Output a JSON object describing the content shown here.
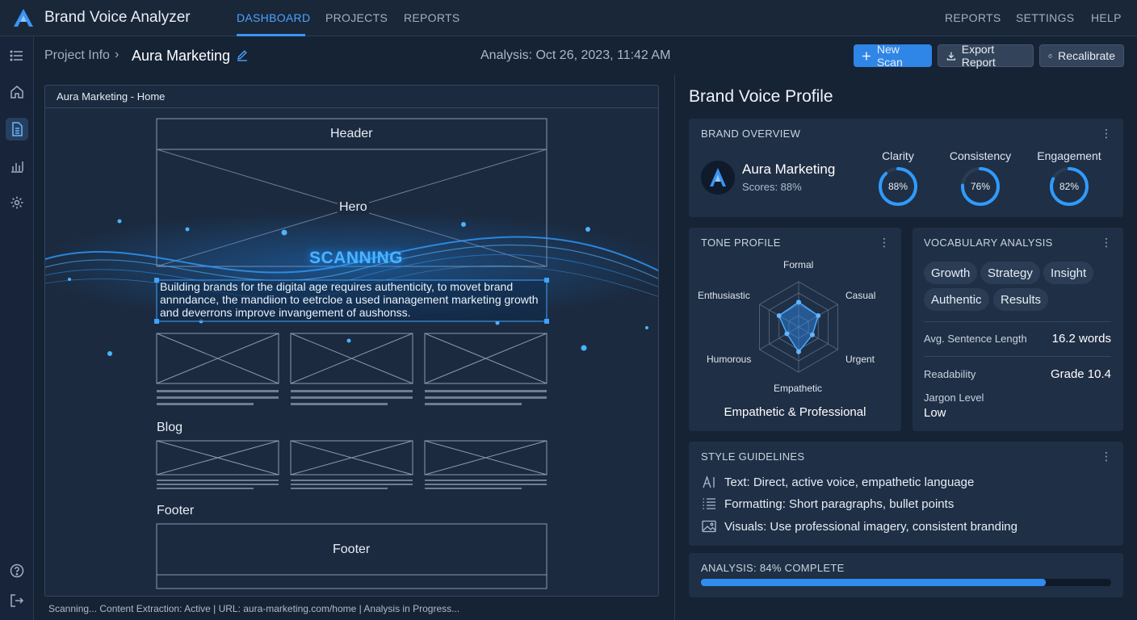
{
  "app": {
    "title": "Brand Voice Analyzer"
  },
  "nav": {
    "left": [
      "DASHBOARD",
      "PROJECTS",
      "REPORTS"
    ],
    "right": [
      "REPORTS",
      "SETTINGS",
      "HELP"
    ]
  },
  "breadcrumb": {
    "parent": "Project Info",
    "separator": "›",
    "current": "Aura Marketing"
  },
  "analysis_date": "Analysis: Oct 26, 2023, 11:42 AM",
  "toolbar": {
    "new_scan": "New Scan",
    "export": "Export Report",
    "recalibrate": "Recalibrate"
  },
  "preview": {
    "title": "Aura Marketing - Home",
    "header": "Header",
    "hero": "Hero",
    "scanning": "SCANNING",
    "scan_text": "Building brands for the digital age requires authenticity, to movet brand annndance, the mandiion to eetrcloe a used inanagement marketing growth and deverrons improve invangement of aushonss.",
    "blog": "Blog",
    "footer_heading": "Footer",
    "footer_box": "Footer"
  },
  "status_line": "Scanning...  Content Extraction: Active   |   URL: aura-marketing.com/home   |   Analysis in Progress...",
  "profile": {
    "title": "Brand Voice Profile",
    "overview": {
      "title": "BRAND OVERVIEW",
      "name": "Aura Marketing",
      "scores": "Scores: 88%",
      "metrics": [
        {
          "label": "Clarity",
          "value": "88%",
          "pct": 88
        },
        {
          "label": "Consistency",
          "value": "76%",
          "pct": 76
        },
        {
          "label": "Engagement",
          "value": "82%",
          "pct": 82
        }
      ]
    },
    "tone": {
      "title": "TONE PROFILE",
      "axes": [
        "Formal",
        "Casual",
        "Urgent",
        "Empathetic",
        "Humorous",
        "Enthusiastic"
      ],
      "values": [
        0.55,
        0.5,
        0.35,
        0.55,
        0.3,
        0.5
      ],
      "result": "Empathetic & Professional"
    },
    "vocab": {
      "title": "VOCABULARY ANALYSIS",
      "chips": [
        "Growth",
        "Strategy",
        "Insight",
        "Authentic",
        "Results"
      ],
      "avg_sentence_label": "Avg. Sentence Length",
      "avg_sentence_value": "16.2 words",
      "readability_label": "Readability",
      "readability_value": "Grade 10.4",
      "jargon_label": "Jargon Level",
      "jargon_value": "Low"
    },
    "style": {
      "title": "STYLE GUIDELINES",
      "rows": [
        "Text: Direct, active voice, empathetic language",
        "Formatting: Short paragraphs, bullet points",
        "Visuals: Use professional imagery, consistent branding"
      ]
    },
    "analysis": {
      "label": "ANALYSIS: 84% COMPLETE",
      "progress": 84
    }
  },
  "colors": {
    "accent": "#3b95f5",
    "bg": "#162335",
    "card": "#1f2f45"
  }
}
